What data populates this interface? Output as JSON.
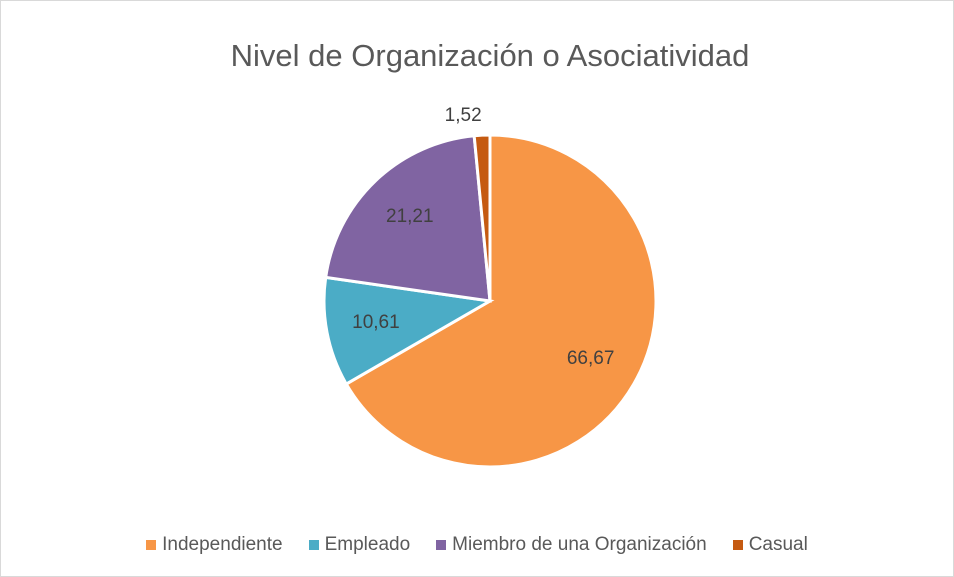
{
  "chart_data": {
    "type": "pie",
    "title": "Nivel de Organización o Asociatividad",
    "categories": [
      "Independiente",
      "Empleado",
      "Miembro de una Organización",
      "Casual"
    ],
    "values": [
      66.67,
      10.61,
      21.21,
      1.52
    ],
    "value_labels": [
      "66,67",
      "10,61",
      "21,21",
      "1,52"
    ],
    "colors": [
      "#f79646",
      "#4bacc6",
      "#8064a2",
      "#c55a11"
    ],
    "legend": "bottom"
  }
}
